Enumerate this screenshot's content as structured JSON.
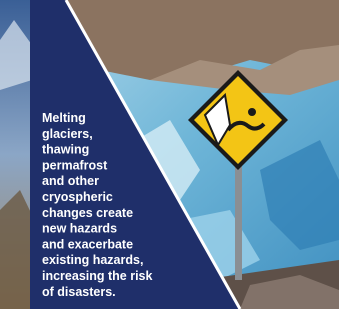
{
  "text_panel": {
    "lines": [
      "Melting",
      "glaciers,",
      "thawing",
      "permafrost",
      "and other",
      "cryospheric",
      "changes create",
      "new hazards",
      "and exacerbate",
      "existing hazards,",
      "increasing the risk",
      "of disasters."
    ]
  }
}
